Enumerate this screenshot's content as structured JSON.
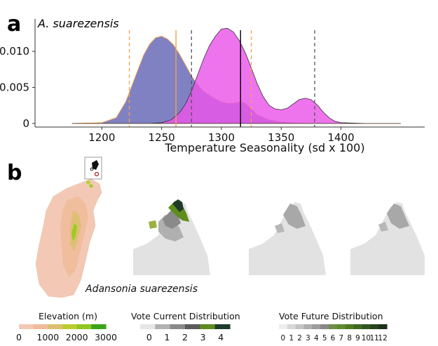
{
  "panel_a": {
    "letter": "a",
    "species": "A. suarezensis",
    "chart_data": {
      "type": "area",
      "xlabel": "Temperature Seasonality (sd x 100)",
      "ylabel": "",
      "xlim": [
        1150,
        1470
      ],
      "ylim": [
        -0.0005,
        0.0145
      ],
      "x_ticks": [
        "1200",
        "1250",
        "1300",
        "1350",
        "1400"
      ],
      "y_ticks": [
        "0",
        "0.005",
        "0.010"
      ],
      "grid": false,
      "series": [
        {
          "color": "#6a6bb8",
          "x": [
            1175,
            1200,
            1212,
            1220,
            1228,
            1235,
            1240,
            1245,
            1250,
            1255,
            1260,
            1265,
            1270,
            1275,
            1280,
            1285,
            1290,
            1295,
            1300,
            1305,
            1310,
            1315,
            1320,
            1325,
            1330,
            1340,
            1350,
            1360,
            1370,
            1380,
            1390,
            1400,
            1420,
            1450
          ],
          "y": [
            0,
            0.0001,
            0.0008,
            0.003,
            0.0065,
            0.0095,
            0.011,
            0.0119,
            0.0121,
            0.0117,
            0.0109,
            0.0096,
            0.0081,
            0.0066,
            0.0054,
            0.0045,
            0.0039,
            0.0034,
            0.003,
            0.0028,
            0.0028,
            0.003,
            0.0028,
            0.002,
            0.0012,
            0.0005,
            0.0002,
            0.0001,
            0,
            0,
            0,
            0,
            0,
            0
          ]
        },
        {
          "color": "#ea55ea",
          "x": [
            1175,
            1240,
            1250,
            1258,
            1265,
            1270,
            1275,
            1280,
            1285,
            1290,
            1295,
            1300,
            1305,
            1310,
            1315,
            1320,
            1325,
            1330,
            1335,
            1340,
            1345,
            1350,
            1355,
            1360,
            1365,
            1370,
            1375,
            1380,
            1385,
            1390,
            1395,
            1400,
            1420,
            1450
          ],
          "y": [
            0,
            0,
            0.0001,
            0.0005,
            0.0015,
            0.0027,
            0.0045,
            0.0067,
            0.0089,
            0.0108,
            0.0121,
            0.0131,
            0.0132,
            0.0127,
            0.0115,
            0.0098,
            0.0077,
            0.0055,
            0.0037,
            0.0025,
            0.002,
            0.0019,
            0.0021,
            0.0027,
            0.0033,
            0.0035,
            0.0033,
            0.0026,
            0.0016,
            0.0008,
            0.0003,
            0.0001,
            0,
            0
          ]
        }
      ],
      "vlines": [
        {
          "x": 1223,
          "color": "#f4a24a",
          "style": "dashed"
        },
        {
          "x": 1262,
          "color": "#f4a24a",
          "style": "solid"
        },
        {
          "x": 1275,
          "color": "#555555",
          "style": "dashed"
        },
        {
          "x": 1316,
          "color": "#000000",
          "style": "solid"
        },
        {
          "x": 1325,
          "color": "#f4a24a",
          "style": "dashed"
        },
        {
          "x": 1378,
          "color": "#555555",
          "style": "dashed"
        }
      ]
    }
  },
  "panel_b": {
    "letter": "b",
    "species_caption": "Adansonia suarezensis",
    "legends": [
      {
        "title": "Elevation (m)",
        "ticks": [
          "0",
          "1000",
          "2000",
          "3000"
        ],
        "colors": [
          "#f3c9b5",
          "#f0bb9a",
          "#dcc070",
          "#bccc30",
          "#8ec820",
          "#3aa31a"
        ]
      },
      {
        "title": "Vote Current Distribution",
        "ticks": [
          "0",
          "1",
          "2",
          "3",
          "4"
        ],
        "colors": [
          "#e6e6e6",
          "#b2b2b2",
          "#8a8a8a",
          "#5c5c5c",
          "#5e8c1e",
          "#1f3b2a"
        ]
      },
      {
        "title": "Vote Future Distribution",
        "ticks": [
          "0",
          "1",
          "2",
          "3",
          "4",
          "5",
          "6",
          "7",
          "8",
          "9",
          "10",
          "11",
          "12"
        ],
        "colors": [
          "#eeeeee",
          "#d8d8d8",
          "#c4c4c4",
          "#b0b0b0",
          "#9c9c9c",
          "#888888",
          "#6f8d4a",
          "#5f8a2e",
          "#4d7a23",
          "#3f6a22",
          "#33561f",
          "#27451c",
          "#1c3218"
        ]
      }
    ]
  }
}
